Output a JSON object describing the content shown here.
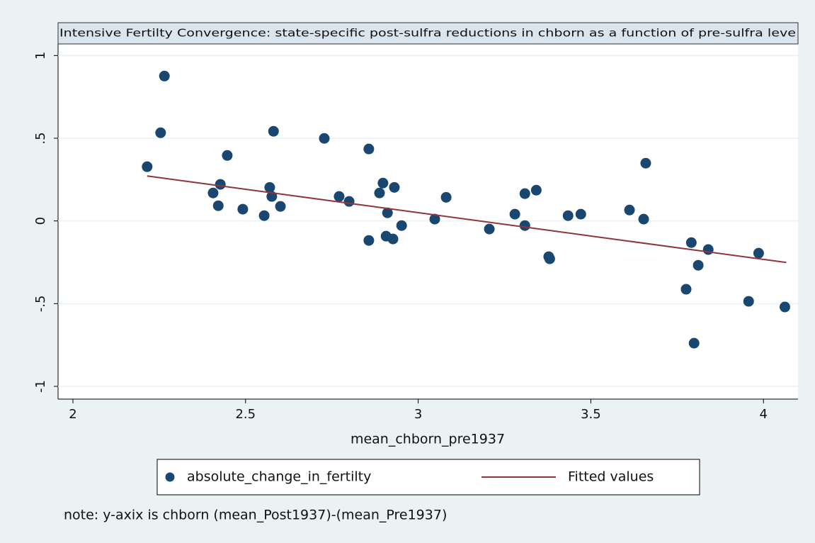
{
  "chart_data": {
    "type": "scatter",
    "title": "Intensive Fertilty Convergence: state-specific post-sulfra reductions in chborn as a function of pre-sulfra leve",
    "x_label": "mean_chborn_pre1937",
    "note": "note: y-axix is chborn (mean_Post1937)-(mean_Pre1937)",
    "xlim": [
      1.957,
      4.1
    ],
    "ylim": [
      -1.077,
      1.07
    ],
    "xticks": [
      2,
      2.5,
      3,
      3.5,
      4
    ],
    "yticks": [
      1,
      {
        "value": 0.5,
        "label": ".5"
      },
      0,
      {
        "value": -0.5,
        "label": "-.5"
      },
      -1
    ],
    "grid": true,
    "series": [
      {
        "name": "absolute_change_in_fertilty",
        "type": "scatter",
        "color": "#1a476f",
        "x": [
          2.215,
          2.265,
          2.254,
          2.447,
          2.406,
          2.427,
          2.421,
          2.492,
          2.554,
          2.57,
          2.581,
          2.576,
          2.601,
          2.728,
          2.771,
          2.8,
          2.857,
          2.857,
          2.898,
          2.888,
          2.931,
          2.911,
          2.907,
          2.927,
          2.952,
          3.048,
          3.081,
          3.206,
          3.28,
          3.309,
          3.342,
          3.309,
          3.378,
          3.381,
          3.434,
          3.471,
          3.612,
          3.653,
          3.659,
          3.776,
          3.791,
          3.84,
          3.811,
          3.799,
          3.957,
          3.986,
          4.062
        ],
        "values": [
          0.328,
          0.876,
          0.533,
          0.396,
          0.169,
          0.221,
          0.092,
          0.071,
          0.032,
          0.203,
          0.542,
          0.148,
          0.088,
          0.499,
          0.148,
          0.118,
          0.435,
          -0.118,
          0.229,
          0.169,
          0.203,
          0.049,
          -0.092,
          -0.109,
          -0.028,
          0.011,
          0.143,
          -0.049,
          0.041,
          0.165,
          0.186,
          -0.028,
          -0.216,
          -0.229,
          0.032,
          0.041,
          0.066,
          0.011,
          0.349,
          -0.413,
          -0.131,
          -0.173,
          -0.268,
          -0.739,
          -0.486,
          -0.195,
          -0.52
        ]
      },
      {
        "name": "Fitted values",
        "type": "line",
        "color": "#90353b",
        "x": [
          2.215,
          4.066
        ],
        "values": [
          0.272,
          -0.251
        ]
      }
    ]
  }
}
